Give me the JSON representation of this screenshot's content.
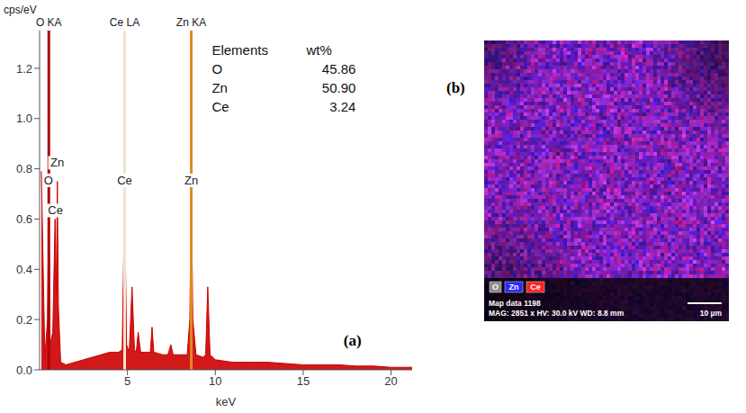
{
  "chart_data": {
    "type": "area",
    "panel": "(a)",
    "x_label": "keV",
    "y_label": "cps/eV",
    "color": "#cc0000",
    "x": [
      0.1,
      0.3,
      0.45,
      0.525,
      0.6,
      0.75,
      0.88,
      0.95,
      1.01,
      1.07,
      1.2,
      1.5,
      2,
      2.5,
      3,
      3.5,
      4,
      4.5,
      4.7,
      4.84,
      4.95,
      5.1,
      5.26,
      5.4,
      5.5,
      5.61,
      5.75,
      6,
      6.3,
      6.4,
      6.5,
      7,
      7.3,
      7.47,
      7.6,
      8,
      8.4,
      8.55,
      8.63,
      8.72,
      8.9,
      9.3,
      9.45,
      9.57,
      9.7,
      10,
      11,
      12,
      13,
      14,
      15,
      16,
      17,
      18,
      19,
      20,
      21.2
    ],
    "values": [
      0.79,
      0.05,
      0.2,
      0.68,
      0.1,
      0.15,
      0.6,
      0.3,
      0.75,
      0.25,
      0.03,
      0.02,
      0.03,
      0.04,
      0.05,
      0.06,
      0.07,
      0.07,
      0.08,
      0.68,
      0.1,
      0.07,
      0.33,
      0.08,
      0.07,
      0.15,
      0.07,
      0.07,
      0.07,
      0.17,
      0.07,
      0.06,
      0.06,
      0.1,
      0.06,
      0.06,
      0.06,
      0.2,
      0.72,
      0.2,
      0.06,
      0.05,
      0.06,
      0.33,
      0.06,
      0.04,
      0.03,
      0.03,
      0.03,
      0.025,
      0.02,
      0.02,
      0.02,
      0.015,
      0.015,
      0.01,
      0.01
    ],
    "xlim": [
      0,
      21.2
    ],
    "xticks": [
      5,
      10,
      15,
      20
    ],
    "ylim": [
      0,
      1.35
    ],
    "yticks": [
      {
        "value": 0,
        "label": "0.0"
      },
      {
        "value": 0.2,
        "label": "0.2"
      },
      {
        "value": 0.4,
        "label": "0.4"
      },
      {
        "value": 0.6,
        "label": "0.6"
      },
      {
        "value": 0.8,
        "label": "0.8"
      },
      {
        "value": 1.0,
        "label": "1.0"
      },
      {
        "value": 1.2,
        "label": "1.2"
      }
    ],
    "markers": [
      {
        "label": "O KA",
        "x": 0.525,
        "color": "#b00000"
      },
      {
        "label": "Ce LA",
        "x": 4.84,
        "color": "#efe3cf"
      },
      {
        "label": "Zn KA",
        "x": 8.63,
        "color": "#e08a1e"
      }
    ],
    "annotations": [
      {
        "text": "Zn",
        "x": 1.0,
        "y": 0.79
      },
      {
        "text": "O",
        "x": 0.5,
        "y": 0.72
      },
      {
        "text": "Ce",
        "x": 0.9,
        "y": 0.6
      },
      {
        "text": "Ce",
        "x": 4.84,
        "y": 0.72
      },
      {
        "text": "Zn",
        "x": 8.63,
        "y": 0.72
      }
    ],
    "table": {
      "header": [
        "Elements",
        "wt%"
      ],
      "rows": [
        [
          "O",
          "45.86"
        ],
        [
          "Zn",
          "50.90"
        ],
        [
          "Ce",
          "3.24"
        ]
      ]
    }
  },
  "map": {
    "panel": "(b)",
    "legend": [
      {
        "text": "O",
        "color": "#8a8a8a"
      },
      {
        "text": "Zn",
        "color": "#2a2aff"
      },
      {
        "text": "Ce",
        "color": "#ff2020"
      }
    ],
    "caption": "Map data 1198",
    "info": "MAG: 2851 x HV: 30.0 kV WD: 8.8 mm",
    "scale": "10 µm"
  }
}
